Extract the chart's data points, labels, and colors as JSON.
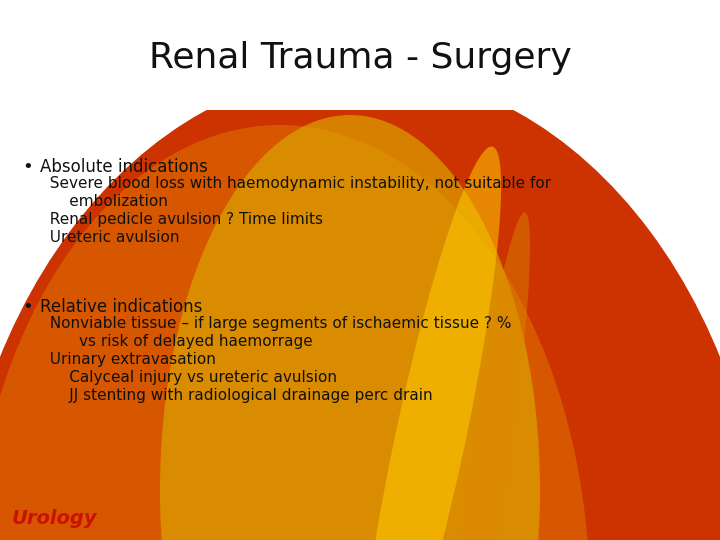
{
  "title": "Renal Trauma - Surgery",
  "title_fontsize": 26,
  "title_color": "#111111",
  "text_color": "#111111",
  "body_fontsize": 11,
  "header_fontsize": 12,
  "bullet1_header": "Absolute indications",
  "bullet1_lines": [
    "  Severe blood loss with haemodynamic instability, not suitable for",
    "      embolization",
    "  Renal pedicle avulsion ? Time limits",
    "  Ureteric avulsion"
  ],
  "bullet2_header": "Relative indications",
  "bullet2_lines": [
    "  Nonviable tissue – if large segments of ischaemic tissue ? %",
    "        vs risk of delayed haemorrage",
    "  Urinary extravasation",
    "      Calyceal injury vs ureteric avulsion",
    "      JJ stenting with radiological drainage perc drain"
  ],
  "footer_text": "Urology",
  "footer_color": "#cc1100",
  "ellipse_main_color": "#cc3300",
  "ellipse_orange_color": "#dd6600",
  "ellipse_yellow_color": "#cc9900",
  "ellipse_gold_color": "#ddaa00",
  "ellipse_streak1_color": "#ffcc00",
  "ellipse_streak2_color": "#dd8800"
}
